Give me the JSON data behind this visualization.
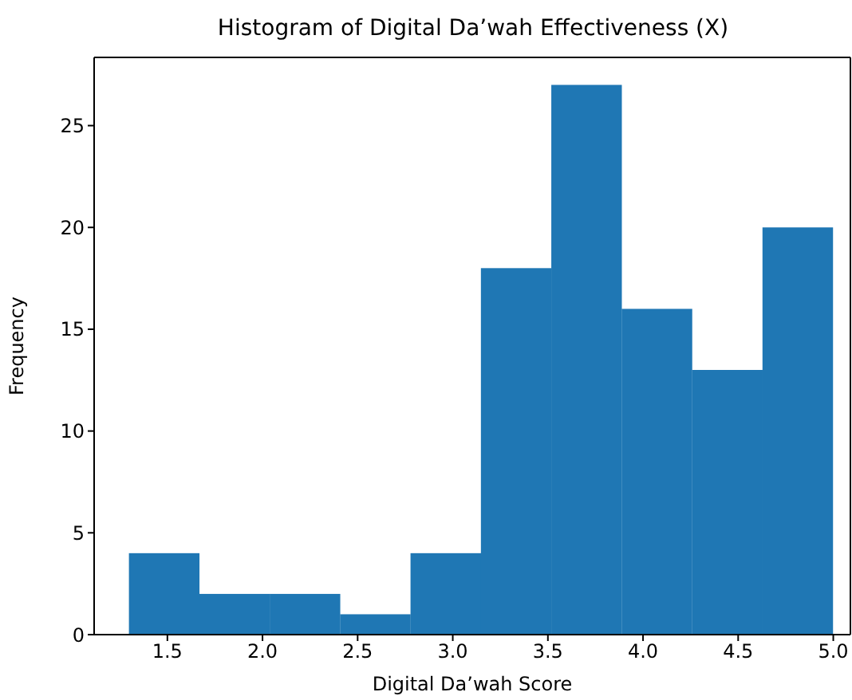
{
  "chart_data": {
    "type": "histogram",
    "title": "Histogram of Digital Da’wah Effectiveness (X)",
    "xlabel": "Digital Da’wah Score",
    "ylabel": "Frequency",
    "bins": [
      1.3,
      1.67,
      2.04,
      2.41,
      2.78,
      3.15,
      3.52,
      3.89,
      4.26,
      4.63,
      5.0
    ],
    "values": [
      4,
      2,
      2,
      1,
      4,
      18,
      27,
      16,
      13,
      20
    ],
    "color": "#1f77b4",
    "xlim": [
      1.115,
      5.09
    ],
    "xticks": [
      {
        "value": 1.5,
        "label": "1.5"
      },
      {
        "value": 2.0,
        "label": "2.0"
      },
      {
        "value": 2.5,
        "label": "2.5"
      },
      {
        "value": 3.0,
        "label": "3.0"
      },
      {
        "value": 3.5,
        "label": "3.5"
      },
      {
        "value": 4.0,
        "label": "4.0"
      },
      {
        "value": 4.5,
        "label": "4.5"
      },
      {
        "value": 5.0,
        "label": "5.0"
      }
    ],
    "ylim": [
      0,
      28.35
    ],
    "yticks": [
      0,
      5,
      10,
      15,
      20,
      25
    ]
  }
}
